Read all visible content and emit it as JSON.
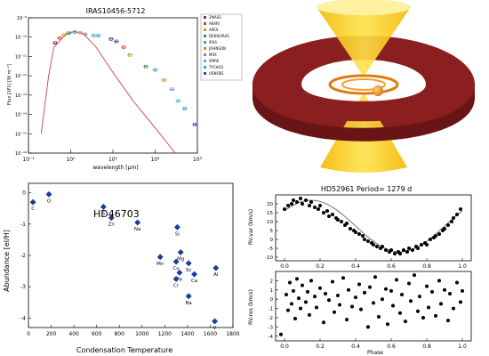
{
  "chart_data": [
    {
      "type": "scatter",
      "title": "IRAS10456-5712",
      "xlabel": "wavelength [μm]",
      "ylabel": "Flux [λFλ] [W m⁻²]",
      "x_scale": "log",
      "y_scale": "log",
      "xlim": [
        0.1,
        1000
      ],
      "ylim": [
        1e-16,
        1e-09
      ],
      "x_tick_labels": [
        "10⁻¹",
        "10⁰",
        "10¹",
        "10²",
        "10³"
      ],
      "y_tick_labels": [
        "10⁻⁹",
        "10⁻¹⁰",
        "10⁻¹¹",
        "10⁻¹²",
        "10⁻¹³",
        "10⁻¹⁴",
        "10⁻¹⁵",
        "10⁻¹⁶"
      ],
      "legend": [
        "2MASS",
        "AKARI",
        "APEX",
        "DENIS/IRAS",
        "IRAS",
        "JOHNSON",
        "MSX",
        "SPIRE",
        "TYCHO2",
        "USNOB1"
      ],
      "legend_colors": [
        "#7a2c5e",
        "#d64040",
        "#b0a020",
        "#2e8b57",
        "#4a90c0",
        "#e08030",
        "#8080c0",
        "#40b0b0",
        "#20a0d0",
        "#2050a0"
      ],
      "model_curve": [
        [
          0.2,
          1e-15
        ],
        [
          0.3,
          1e-12
        ],
        [
          0.4,
          3e-11
        ],
        [
          0.6,
          8e-11
        ],
        [
          0.8,
          1.5e-10
        ],
        [
          1.2,
          2e-10
        ],
        [
          2,
          1.5e-10
        ],
        [
          4,
          3e-11
        ],
        [
          10,
          1.5e-12
        ],
        [
          30,
          5e-14
        ],
        [
          100,
          2e-15
        ],
        [
          300,
          1e-16
        ]
      ],
      "observations": [
        [
          0.43,
          5e-11
        ],
        [
          0.55,
          9e-11
        ],
        [
          0.7,
          1.3e-10
        ],
        [
          0.9,
          1.6e-10
        ],
        [
          1.25,
          1.8e-10
        ],
        [
          1.65,
          1.7e-10
        ],
        [
          2.2,
          1.4e-10
        ],
        [
          3.5,
          1.2e-10
        ],
        [
          4.5,
          1.2e-10
        ],
        [
          9,
          8e-11
        ],
        [
          12,
          6e-11
        ],
        [
          18,
          3e-11
        ],
        [
          25,
          1.2e-11
        ],
        [
          60,
          3e-12
        ],
        [
          100,
          2e-12
        ],
        [
          160,
          6e-13
        ],
        [
          250,
          2e-13
        ],
        [
          350,
          5e-14
        ],
        [
          500,
          2e-14
        ],
        [
          870,
          3e-15
        ]
      ]
    },
    {
      "type": "illustration",
      "description_key": "torus_disk_jet"
    },
    {
      "type": "scatter",
      "annotation": "HD46703",
      "xlabel": "Condensation Temperature",
      "ylabel": "Abundance [el/H]",
      "xlim": [
        0,
        1800
      ],
      "ylim": [
        -4.3,
        0.3
      ],
      "x_ticks": [
        0,
        200,
        400,
        600,
        800,
        1000,
        1200,
        1400,
        1600,
        1800
      ],
      "y_ticks": [
        0,
        -1,
        -2,
        -3,
        -4
      ],
      "points": [
        {
          "el": "C",
          "x": 40,
          "y": -0.3
        },
        {
          "el": "O",
          "x": 180,
          "y": -0.05
        },
        {
          "el": "S",
          "x": 660,
          "y": -0.45
        },
        {
          "el": "Zn",
          "x": 730,
          "y": -0.8
        },
        {
          "el": "Na",
          "x": 960,
          "y": -0.95
        },
        {
          "el": "Si",
          "x": 1310,
          "y": -1.1
        },
        {
          "el": "Mg",
          "x": 1340,
          "y": -1.9
        },
        {
          "el": "Mn",
          "x": 1160,
          "y": -2.05
        },
        {
          "el": "Cu",
          "x": 1300,
          "y": -2.2
        },
        {
          "el": "Sc",
          "x": 1410,
          "y": -2.25
        },
        {
          "el": "Fe",
          "x": 1330,
          "y": -2.55
        },
        {
          "el": "Ca",
          "x": 1460,
          "y": -2.6
        },
        {
          "el": "Cr",
          "x": 1300,
          "y": -2.75
        },
        {
          "el": "Ba",
          "x": 1410,
          "y": -3.3
        },
        {
          "el": "Al",
          "x": 1650,
          "y": -2.4
        },
        {
          "el": "V",
          "x": 1640,
          "y": -4.1
        }
      ],
      "x_tick_labels": [
        "0",
        "200",
        "400",
        "600",
        "800",
        "1000",
        "1200",
        "1400",
        "1600",
        "1800"
      ],
      "y_tick_labels": [
        "0",
        "-1",
        "-2",
        "-3",
        "-4"
      ]
    },
    {
      "type": "scatter",
      "title": "HD52961 Period=  1279 d",
      "xlabel": "Phase",
      "panels": [
        {
          "ylabel": "RV-var (km/s)",
          "xlim": [
            -0.05,
            1.05
          ],
          "ylim": [
            -12,
            25
          ],
          "x_tick_labels": [
            "0.0",
            "0.2",
            "0.4",
            "0.6",
            "0.8",
            "1.0"
          ],
          "y_ticks": [
            -10,
            -5,
            0,
            5,
            10,
            15,
            20
          ],
          "y_tick_labels": [
            "-10",
            "-5",
            "0",
            "5",
            "10",
            "15",
            "20"
          ],
          "fit": "sinusoid",
          "fit_params": {
            "amplitude": 14.5,
            "offset": 7.5,
            "phase_of_min": 0.65
          },
          "points": [
            [
              0.0,
              17
            ],
            [
              0.02,
              19
            ],
            [
              0.04,
              20
            ],
            [
              0.05,
              22
            ],
            [
              0.07,
              21
            ],
            [
              0.09,
              23
            ],
            [
              0.1,
              20
            ],
            [
              0.12,
              22
            ],
            [
              0.14,
              19
            ],
            [
              0.15,
              21
            ],
            [
              0.17,
              18
            ],
            [
              0.19,
              17
            ],
            [
              0.2,
              19
            ],
            [
              0.22,
              15
            ],
            [
              0.24,
              16
            ],
            [
              0.25,
              13
            ],
            [
              0.27,
              14
            ],
            [
              0.29,
              12
            ],
            [
              0.3,
              11
            ],
            [
              0.32,
              10
            ],
            [
              0.34,
              8
            ],
            [
              0.35,
              9
            ],
            [
              0.37,
              6
            ],
            [
              0.39,
              5
            ],
            [
              0.4,
              4
            ],
            [
              0.42,
              3
            ],
            [
              0.44,
              2
            ],
            [
              0.45,
              0
            ],
            [
              0.47,
              -1
            ],
            [
              0.49,
              -2
            ],
            [
              0.5,
              -3
            ],
            [
              0.52,
              -4
            ],
            [
              0.54,
              -5
            ],
            [
              0.55,
              -4
            ],
            [
              0.57,
              -6
            ],
            [
              0.59,
              -7
            ],
            [
              0.6,
              -6
            ],
            [
              0.62,
              -8
            ],
            [
              0.64,
              -7
            ],
            [
              0.65,
              -8
            ],
            [
              0.67,
              -6
            ],
            [
              0.69,
              -7
            ],
            [
              0.7,
              -5
            ],
            [
              0.72,
              -6
            ],
            [
              0.74,
              -4
            ],
            [
              0.75,
              -5
            ],
            [
              0.77,
              -3
            ],
            [
              0.79,
              -2
            ],
            [
              0.8,
              -3
            ],
            [
              0.82,
              0
            ],
            [
              0.84,
              1
            ],
            [
              0.85,
              2
            ],
            [
              0.87,
              3
            ],
            [
              0.89,
              5
            ],
            [
              0.9,
              6
            ],
            [
              0.92,
              8
            ],
            [
              0.94,
              10
            ],
            [
              0.95,
              12
            ],
            [
              0.97,
              14
            ],
            [
              0.99,
              17
            ]
          ]
        },
        {
          "ylabel": "RV-res (km/s)",
          "xlim": [
            -0.05,
            1.05
          ],
          "ylim": [
            -4.5,
            3
          ],
          "x_tick_labels": [
            "0.0",
            "0.2",
            "0.4",
            "0.6",
            "0.8",
            "1.0"
          ],
          "y_ticks": [
            -4,
            -3,
            -2,
            -1,
            0,
            1,
            2
          ],
          "y_tick_labels": [
            "-4",
            "-3",
            "-2",
            "-1",
            "0",
            "1",
            "2"
          ],
          "points": [
            [
              0.01,
              0.5
            ],
            [
              0.02,
              -1.2
            ],
            [
              0.03,
              1.8
            ],
            [
              0.04,
              -0.5
            ],
            [
              0.05,
              0.9
            ],
            [
              0.06,
              -2.1
            ],
            [
              0.07,
              2.2
            ],
            [
              0.08,
              0.1
            ],
            [
              0.09,
              -1.0
            ],
            [
              0.1,
              1.5
            ],
            [
              0.12,
              -0.3
            ],
            [
              0.13,
              0.8
            ],
            [
              0.14,
              -1.7
            ],
            [
              0.15,
              2.0
            ],
            [
              0.17,
              0.3
            ],
            [
              0.18,
              -0.9
            ],
            [
              0.2,
              1.2
            ],
            [
              0.22,
              -2.5
            ],
            [
              0.23,
              0.6
            ],
            [
              0.25,
              -0.1
            ],
            [
              0.27,
              1.9
            ],
            [
              0.28,
              -1.4
            ],
            [
              0.3,
              0.4
            ],
            [
              0.31,
              -0.6
            ],
            [
              0.33,
              2.3
            ],
            [
              0.35,
              -2.2
            ],
            [
              0.36,
              1.0
            ],
            [
              0.38,
              -0.8
            ],
            [
              0.4,
              0.2
            ],
            [
              0.42,
              1.6
            ],
            [
              0.43,
              -1.1
            ],
            [
              0.45,
              0.7
            ],
            [
              0.47,
              -3.0
            ],
            [
              0.48,
              1.3
            ],
            [
              0.5,
              -0.4
            ],
            [
              0.51,
              2.4
            ],
            [
              0.53,
              -1.9
            ],
            [
              0.55,
              0.0
            ],
            [
              0.57,
              1.1
            ],
            [
              0.58,
              -2.7
            ],
            [
              0.6,
              0.9
            ],
            [
              0.61,
              -0.7
            ],
            [
              0.63,
              2.1
            ],
            [
              0.65,
              -1.5
            ],
            [
              0.66,
              0.5
            ],
            [
              0.68,
              -2.4
            ],
            [
              0.7,
              1.7
            ],
            [
              0.71,
              -0.2
            ],
            [
              0.73,
              2.6
            ],
            [
              0.75,
              -1.3
            ],
            [
              0.76,
              0.3
            ],
            [
              0.78,
              -2.0
            ],
            [
              0.8,
              1.4
            ],
            [
              0.81,
              -0.9
            ],
            [
              0.83,
              0.8
            ],
            [
              0.85,
              -1.8
            ],
            [
              0.87,
              2.0
            ],
            [
              0.88,
              -0.5
            ],
            [
              0.9,
              1.0
            ],
            [
              0.92,
              -2.3
            ],
            [
              0.93,
              0.6
            ],
            [
              0.95,
              -1.0
            ],
            [
              0.97,
              1.8
            ],
            [
              0.99,
              -0.3
            ],
            [
              1.0,
              0.9
            ],
            [
              -0.02,
              -3.8
            ]
          ]
        }
      ]
    }
  ]
}
